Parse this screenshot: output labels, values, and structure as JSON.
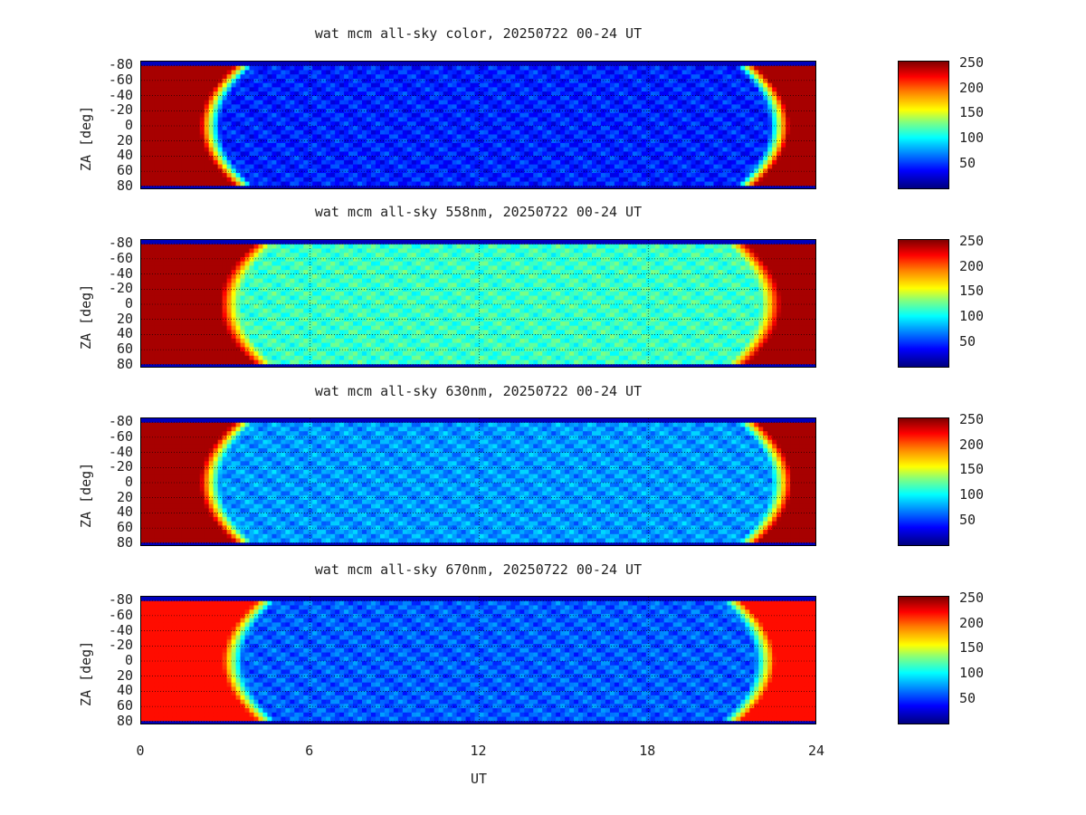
{
  "chart_data": [
    {
      "type": "heatmap",
      "title": "wat mcm all-sky color, 20250722 00-24 UT",
      "ylabel": "ZA [deg]",
      "xlabel": "",
      "x_range": [
        0,
        24
      ],
      "y_range": [
        -85,
        85
      ],
      "y_ticks": [
        "-80",
        "-60",
        "-40",
        "-20",
        "0",
        "20",
        "40",
        "60",
        "80"
      ],
      "colorbar_ticks": [
        "250",
        "200",
        "150",
        "100",
        "50"
      ],
      "colorbar_range": [
        0,
        255
      ],
      "grid": true,
      "daylight_end_ut": 2.8,
      "daylight_start_ut": 22.3,
      "night_level": 40,
      "day_level": 245
    },
    {
      "type": "heatmap",
      "title": "wat mcm all-sky 558nm, 20250722 00-24 UT",
      "ylabel": "ZA [deg]",
      "xlabel": "",
      "x_range": [
        0,
        24
      ],
      "y_range": [
        -85,
        85
      ],
      "y_ticks": [
        "-80",
        "-60",
        "-40",
        "-20",
        "0",
        "20",
        "40",
        "60",
        "80"
      ],
      "colorbar_ticks": [
        "250",
        "200",
        "150",
        "100",
        "50"
      ],
      "colorbar_range": [
        0,
        255
      ],
      "grid": true,
      "daylight_end_ut": 3.5,
      "daylight_start_ut": 22.0,
      "night_level": 110,
      "day_level": 245
    },
    {
      "type": "heatmap",
      "title": "wat mcm all-sky 630nm, 20250722 00-24 UT",
      "ylabel": "ZA [deg]",
      "xlabel": "",
      "x_range": [
        0,
        24
      ],
      "y_range": [
        -85,
        85
      ],
      "y_ticks": [
        "-80",
        "-60",
        "-40",
        "-20",
        "0",
        "20",
        "40",
        "60",
        "80"
      ],
      "colorbar_ticks": [
        "250",
        "200",
        "150",
        "100",
        "50"
      ],
      "colorbar_range": [
        0,
        255
      ],
      "grid": true,
      "daylight_end_ut": 2.8,
      "daylight_start_ut": 22.4,
      "night_level": 70,
      "day_level": 245
    },
    {
      "type": "heatmap",
      "title": "wat mcm all-sky 670nm, 20250722 00-24 UT",
      "ylabel": "ZA [deg]",
      "xlabel": "UT",
      "x_range": [
        0,
        24
      ],
      "y_range": [
        -85,
        85
      ],
      "y_ticks": [
        "-80",
        "-60",
        "-40",
        "-20",
        "0",
        "20",
        "40",
        "60",
        "80"
      ],
      "x_ticks": [
        "0",
        "6",
        "12",
        "18",
        "24"
      ],
      "colorbar_ticks": [
        "250",
        "200",
        "150",
        "100",
        "50"
      ],
      "colorbar_range": [
        0,
        255
      ],
      "grid": true,
      "daylight_end_ut": 3.6,
      "daylight_start_ut": 21.8,
      "night_level": 55,
      "day_level": 220
    }
  ]
}
